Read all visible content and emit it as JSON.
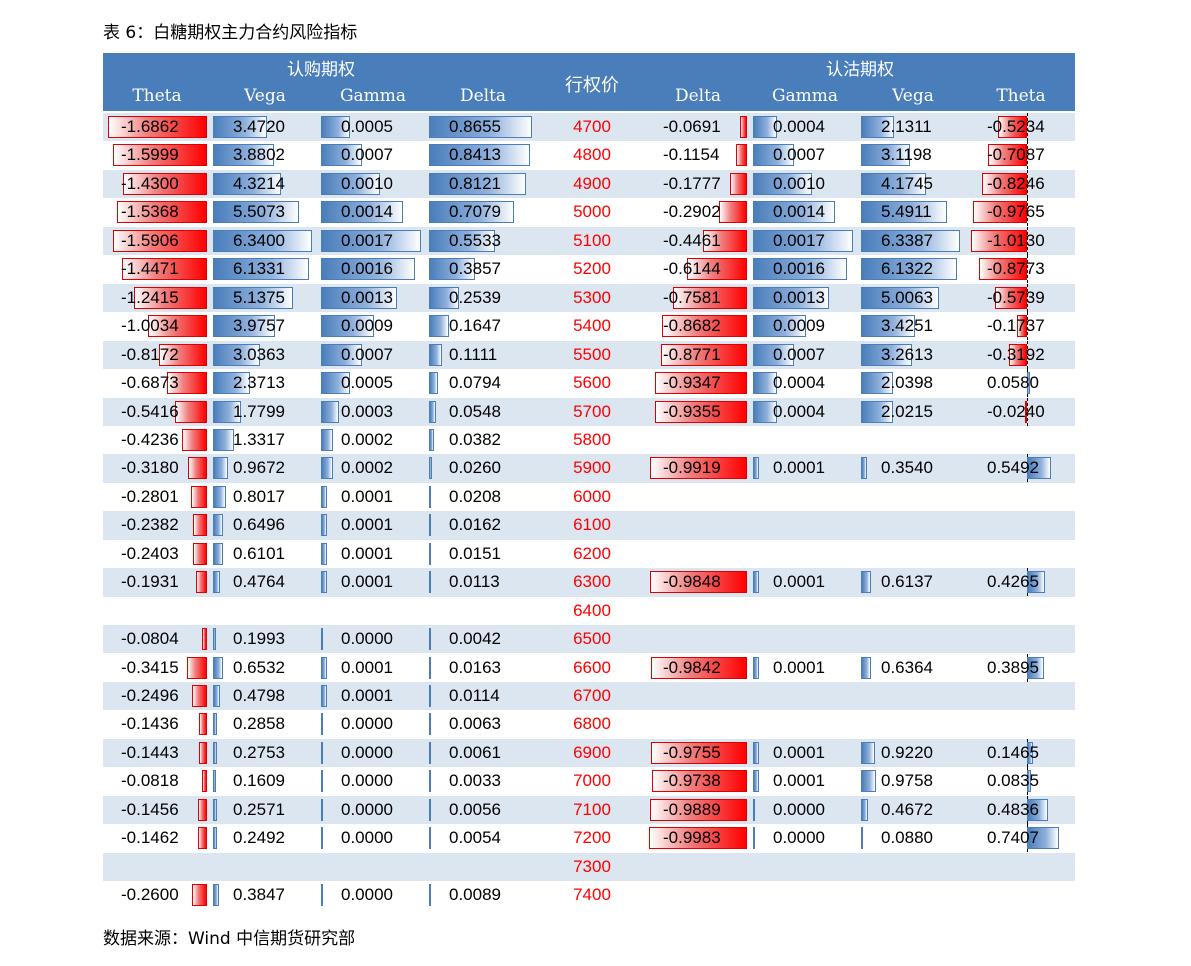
{
  "title": "表 6：白糖期权主力合约风险指标",
  "source": "数据来源：Wind 中信期货研究部",
  "colors": {
    "header_bg": "#4a7ebb",
    "alt_row": "#dce6f1",
    "strike": "#ff0000",
    "neg_bar": "#ff0000",
    "pos_bar": "#4a7ebb"
  },
  "header": {
    "call_group": "认购期权",
    "put_group": "认沽期权",
    "strike": "行权价",
    "call_cols": [
      "Theta",
      "Vega",
      "Gamma",
      "Delta"
    ],
    "put_cols": [
      "Delta",
      "Gamma",
      "Vega",
      "Theta"
    ]
  },
  "rows": [
    {
      "strike": "4700",
      "c_theta": "-1.6862",
      "c_vega": "3.4720",
      "c_gamma": "0.0005",
      "c_delta": "0.8655",
      "p_delta": "-0.0691",
      "p_gamma": "0.0004",
      "p_vega": "2.1311",
      "p_theta": "-0.5234"
    },
    {
      "strike": "4800",
      "c_theta": "-1.5999",
      "c_vega": "3.8802",
      "c_gamma": "0.0007",
      "c_delta": "0.8413",
      "p_delta": "-0.1154",
      "p_gamma": "0.0007",
      "p_vega": "3.1198",
      "p_theta": "-0.7087"
    },
    {
      "strike": "4900",
      "c_theta": "-1.4300",
      "c_vega": "4.3214",
      "c_gamma": "0.0010",
      "c_delta": "0.8121",
      "p_delta": "-0.1777",
      "p_gamma": "0.0010",
      "p_vega": "4.1745",
      "p_theta": "-0.8246"
    },
    {
      "strike": "5000",
      "c_theta": "-1.5368",
      "c_vega": "5.5073",
      "c_gamma": "0.0014",
      "c_delta": "0.7079",
      "p_delta": "-0.2902",
      "p_gamma": "0.0014",
      "p_vega": "5.4911",
      "p_theta": "-0.9765"
    },
    {
      "strike": "5100",
      "c_theta": "-1.5906",
      "c_vega": "6.3400",
      "c_gamma": "0.0017",
      "c_delta": "0.5533",
      "p_delta": "-0.4461",
      "p_gamma": "0.0017",
      "p_vega": "6.3387",
      "p_theta": "-1.0130"
    },
    {
      "strike": "5200",
      "c_theta": "-1.4471",
      "c_vega": "6.1331",
      "c_gamma": "0.0016",
      "c_delta": "0.3857",
      "p_delta": "-0.6144",
      "p_gamma": "0.0016",
      "p_vega": "6.1322",
      "p_theta": "-0.8773"
    },
    {
      "strike": "5300",
      "c_theta": "-1.2415",
      "c_vega": "5.1375",
      "c_gamma": "0.0013",
      "c_delta": "0.2539",
      "p_delta": "-0.7581",
      "p_gamma": "0.0013",
      "p_vega": "5.0063",
      "p_theta": "-0.5739"
    },
    {
      "strike": "5400",
      "c_theta": "-1.0034",
      "c_vega": "3.9757",
      "c_gamma": "0.0009",
      "c_delta": "0.1647",
      "p_delta": "-0.8682",
      "p_gamma": "0.0009",
      "p_vega": "3.4251",
      "p_theta": "-0.1737"
    },
    {
      "strike": "5500",
      "c_theta": "-0.8172",
      "c_vega": "3.0363",
      "c_gamma": "0.0007",
      "c_delta": "0.1111",
      "p_delta": "-0.8771",
      "p_gamma": "0.0007",
      "p_vega": "3.2613",
      "p_theta": "-0.3192"
    },
    {
      "strike": "5600",
      "c_theta": "-0.6873",
      "c_vega": "2.3713",
      "c_gamma": "0.0005",
      "c_delta": "0.0794",
      "p_delta": "-0.9347",
      "p_gamma": "0.0004",
      "p_vega": "2.0398",
      "p_theta": "0.0580"
    },
    {
      "strike": "5700",
      "c_theta": "-0.5416",
      "c_vega": "1.7799",
      "c_gamma": "0.0003",
      "c_delta": "0.0548",
      "p_delta": "-0.9355",
      "p_gamma": "0.0004",
      "p_vega": "2.0215",
      "p_theta": "-0.0240"
    },
    {
      "strike": "5800",
      "c_theta": "-0.4236",
      "c_vega": "1.3317",
      "c_gamma": "0.0002",
      "c_delta": "0.0382",
      "p_delta": "",
      "p_gamma": "",
      "p_vega": "",
      "p_theta": ""
    },
    {
      "strike": "5900",
      "c_theta": "-0.3180",
      "c_vega": "0.9672",
      "c_gamma": "0.0002",
      "c_delta": "0.0260",
      "p_delta": "-0.9919",
      "p_gamma": "0.0001",
      "p_vega": "0.3540",
      "p_theta": "0.5492"
    },
    {
      "strike": "6000",
      "c_theta": "-0.2801",
      "c_vega": "0.8017",
      "c_gamma": "0.0001",
      "c_delta": "0.0208",
      "p_delta": "",
      "p_gamma": "",
      "p_vega": "",
      "p_theta": ""
    },
    {
      "strike": "6100",
      "c_theta": "-0.2382",
      "c_vega": "0.6496",
      "c_gamma": "0.0001",
      "c_delta": "0.0162",
      "p_delta": "",
      "p_gamma": "",
      "p_vega": "",
      "p_theta": ""
    },
    {
      "strike": "6200",
      "c_theta": "-0.2403",
      "c_vega": "0.6101",
      "c_gamma": "0.0001",
      "c_delta": "0.0151",
      "p_delta": "",
      "p_gamma": "",
      "p_vega": "",
      "p_theta": ""
    },
    {
      "strike": "6300",
      "c_theta": "-0.1931",
      "c_vega": "0.4764",
      "c_gamma": "0.0001",
      "c_delta": "0.0113",
      "p_delta": "-0.9848",
      "p_gamma": "0.0001",
      "p_vega": "0.6137",
      "p_theta": "0.4265"
    },
    {
      "strike": "6400",
      "c_theta": "",
      "c_vega": "",
      "c_gamma": "",
      "c_delta": "",
      "p_delta": "",
      "p_gamma": "",
      "p_vega": "",
      "p_theta": ""
    },
    {
      "strike": "6500",
      "c_theta": "-0.0804",
      "c_vega": "0.1993",
      "c_gamma": "0.0000",
      "c_delta": "0.0042",
      "p_delta": "",
      "p_gamma": "",
      "p_vega": "",
      "p_theta": ""
    },
    {
      "strike": "6600",
      "c_theta": "-0.3415",
      "c_vega": "0.6532",
      "c_gamma": "0.0001",
      "c_delta": "0.0163",
      "p_delta": "-0.9842",
      "p_gamma": "0.0001",
      "p_vega": "0.6364",
      "p_theta": "0.3895"
    },
    {
      "strike": "6700",
      "c_theta": "-0.2496",
      "c_vega": "0.4798",
      "c_gamma": "0.0001",
      "c_delta": "0.0114",
      "p_delta": "",
      "p_gamma": "",
      "p_vega": "",
      "p_theta": ""
    },
    {
      "strike": "6800",
      "c_theta": "-0.1436",
      "c_vega": "0.2858",
      "c_gamma": "0.0000",
      "c_delta": "0.0063",
      "p_delta": "",
      "p_gamma": "",
      "p_vega": "",
      "p_theta": ""
    },
    {
      "strike": "6900",
      "c_theta": "-0.1443",
      "c_vega": "0.2753",
      "c_gamma": "0.0000",
      "c_delta": "0.0061",
      "p_delta": "-0.9755",
      "p_gamma": "0.0001",
      "p_vega": "0.9220",
      "p_theta": "0.1465"
    },
    {
      "strike": "7000",
      "c_theta": "-0.0818",
      "c_vega": "0.1609",
      "c_gamma": "0.0000",
      "c_delta": "0.0033",
      "p_delta": "-0.9738",
      "p_gamma": "0.0001",
      "p_vega": "0.9758",
      "p_theta": "0.0835"
    },
    {
      "strike": "7100",
      "c_theta": "-0.1456",
      "c_vega": "0.2571",
      "c_gamma": "0.0000",
      "c_delta": "0.0056",
      "p_delta": "-0.9889",
      "p_gamma": "0.0000",
      "p_vega": "0.4672",
      "p_theta": "0.4836"
    },
    {
      "strike": "7200",
      "c_theta": "-0.1462",
      "c_vega": "0.2492",
      "c_gamma": "0.0000",
      "c_delta": "0.0054",
      "p_delta": "-0.9983",
      "p_gamma": "0.0000",
      "p_vega": "0.0880",
      "p_theta": "0.7407"
    },
    {
      "strike": "7300",
      "c_theta": "",
      "c_vega": "",
      "c_gamma": "",
      "c_delta": "",
      "p_delta": "",
      "p_gamma": "",
      "p_vega": "",
      "p_theta": ""
    },
    {
      "strike": "7400",
      "c_theta": "-0.2600",
      "c_vega": "0.3847",
      "c_gamma": "0.0000",
      "c_delta": "0.0089",
      "p_delta": "",
      "p_gamma": "",
      "p_vega": "",
      "p_theta": ""
    }
  ]
}
